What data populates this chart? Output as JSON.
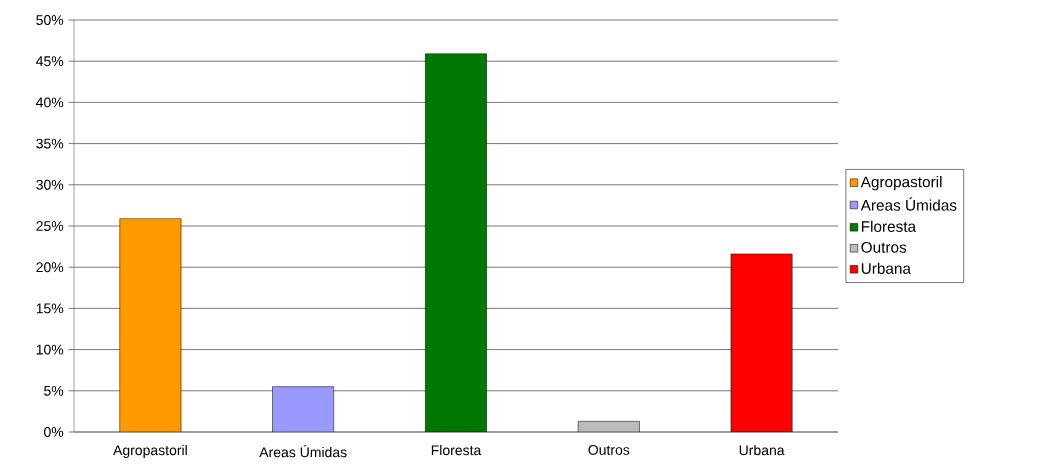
{
  "chart_data": {
    "type": "bar",
    "categories": [
      "Agropastoril",
      "Areas Úmidas",
      "Floresta",
      "Outros",
      "Urbana"
    ],
    "series": [
      {
        "name": "Agropastoril",
        "color": "#ff9900",
        "values": [
          25.9,
          null,
          null,
          null,
          null
        ]
      },
      {
        "name": "Areas Úmidas",
        "color": "#9999ff",
        "values": [
          null,
          5.5,
          null,
          null,
          null
        ]
      },
      {
        "name": "Floresta",
        "color": "#007700",
        "values": [
          null,
          null,
          45.9,
          null,
          null
        ]
      },
      {
        "name": "Outros",
        "color": "#bbbbbb",
        "values": [
          null,
          null,
          null,
          1.3,
          null
        ]
      },
      {
        "name": "Urbana",
        "color": "#ff0000",
        "values": [
          null,
          null,
          null,
          null,
          21.6
        ]
      }
    ],
    "ylim": [
      0,
      50
    ],
    "yticks": [
      {
        "value": 0,
        "label": "0%"
      },
      {
        "value": 5,
        "label": "5%"
      },
      {
        "value": 10,
        "label": "10%"
      },
      {
        "value": 15,
        "label": "15%"
      },
      {
        "value": 20,
        "label": "20%"
      },
      {
        "value": 25,
        "label": "25%"
      },
      {
        "value": 30,
        "label": "30%"
      },
      {
        "value": 35,
        "label": "35%"
      },
      {
        "value": 40,
        "label": "40%"
      },
      {
        "value": 45,
        "label": "45%"
      },
      {
        "value": 50,
        "label": "50%"
      }
    ],
    "grid": "y",
    "legend": "right"
  }
}
